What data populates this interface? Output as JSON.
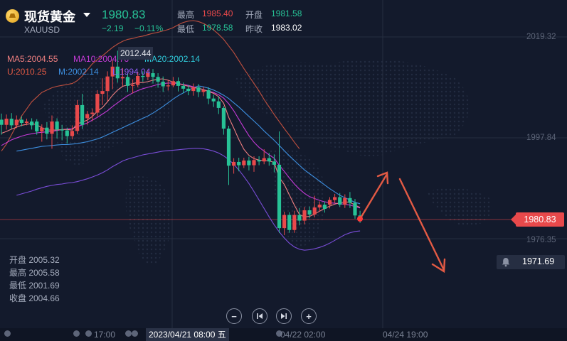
{
  "header": {
    "title": "现货黄金",
    "symbol": "XAUUSD",
    "price": "1980.83",
    "change": "−2.19",
    "change_pct": "−0.11%",
    "high_label": "最高",
    "high": "1985.40",
    "open_label": "开盘",
    "open": "1981.58",
    "low_label": "最低",
    "low": "1978.58",
    "prev_close_label": "昨收",
    "prev_close": "1983.02"
  },
  "indicators": {
    "ma5": "MA5:2004.55",
    "ma10": "MA10:2004.76",
    "ma20": "MA20:2002.14",
    "boll_u": "U:2010.25",
    "boll_m": "M:2002.14",
    "boll_l": "L:1994.04"
  },
  "ohlc_box": {
    "open": "开盘 2005.32",
    "high": "最高 2005.58",
    "low": "最低 2001.69",
    "close": "收盘 2004.66"
  },
  "price_tag": "1980.83",
  "alert_value": "1971.69",
  "high_marker": "2012.44",
  "x_axis": {
    "t1": "17:00",
    "highlight": "2023/04/21 08:00 五",
    "t2": "04/22 02:00",
    "t3": "04/24 19:00"
  },
  "colors": {
    "up": "#e8494b",
    "down": "#27c296",
    "ma5": "#f07f80",
    "ma10": "#c43ad6",
    "ma20": "#3d8fe0",
    "boll_u": "#c0503f",
    "boll_l": "#7a4dd8"
  },
  "icons": [
    "gold-coin-icon",
    "caret-down-icon",
    "bell-icon",
    "zoom-out-icon",
    "prev-icon",
    "next-icon",
    "zoom-in-icon"
  ],
  "chart_data": {
    "type": "candlestick",
    "y_axis_ticks": [
      "2019.32",
      "1997.84",
      "1976.35"
    ],
    "ylim": [
      1963.5,
      2025.2
    ],
    "candles": [
      [
        2001.7,
        2000.6,
        2003.0,
        1998.5
      ],
      [
        2000.6,
        2001.9,
        2002.8,
        1999.6
      ],
      [
        2001.9,
        2000.5,
        2003.1,
        1999.8
      ],
      [
        2000.5,
        2001.7,
        2002.6,
        1999.9
      ],
      [
        2001.7,
        2001.0,
        2002.4,
        2000.3
      ],
      [
        2001.0,
        2001.3,
        2001.9,
        2000.5
      ],
      [
        2001.3,
        2000.5,
        2002.0,
        1999.6
      ],
      [
        2001.3,
        1999.2,
        2001.8,
        1998.5
      ],
      [
        1999.2,
        2000.0,
        2000.7,
        1997.0
      ],
      [
        2000.0,
        1998.7,
        2001.2,
        1997.5
      ],
      [
        1998.7,
        2001.3,
        2002.6,
        1995.5
      ],
      [
        2001.3,
        1999.6,
        2002.0,
        1997.7
      ],
      [
        1999.6,
        1999.4,
        2000.6,
        1997.3
      ],
      [
        1999.4,
        1998.2,
        2000.0,
        1996.6
      ],
      [
        1998.2,
        1999.3,
        2000.5,
        1997.5
      ],
      [
        1999.3,
        2004.8,
        2005.9,
        1998.6
      ],
      [
        2004.8,
        2000.6,
        2007.2,
        1999.7
      ],
      [
        2002.0,
        2002.9,
        2003.6,
        2000.6
      ],
      [
        2002.9,
        2003.2,
        2004.1,
        2001.4
      ],
      [
        2003.2,
        2007.2,
        2008.0,
        2002.4
      ],
      [
        2007.2,
        2007.8,
        2010.5,
        2004.8
      ],
      [
        2007.8,
        2010.9,
        2012.0,
        2005.6
      ],
      [
        2010.9,
        2013.0,
        2014.4,
        2008.2
      ],
      [
        2013.0,
        2010.5,
        2016.4,
        2009.6
      ],
      [
        2010.5,
        2010.8,
        2012.7,
        2008.9
      ],
      [
        2010.8,
        2008.9,
        2011.6,
        2007.6
      ],
      [
        2008.9,
        2009.1,
        2010.3,
        2007.3
      ],
      [
        2009.1,
        2011.0,
        2011.9,
        2008.6
      ],
      [
        2011.0,
        2010.8,
        2012.0,
        2009.8
      ],
      [
        2010.8,
        2011.6,
        2012.4,
        2010.1
      ],
      [
        2011.6,
        2010.8,
        2012.5,
        2009.4
      ],
      [
        2010.8,
        2009.8,
        2011.6,
        2008.5
      ],
      [
        2009.8,
        2008.8,
        2010.9,
        2007.6
      ],
      [
        2008.8,
        2009.0,
        2010.2,
        2007.9
      ],
      [
        2009.0,
        2009.9,
        2010.8,
        2008.6
      ],
      [
        2009.9,
        2008.9,
        2010.7,
        2007.7
      ],
      [
        2008.9,
        2008.3,
        2009.6,
        2007.3
      ],
      [
        2008.3,
        2007.8,
        2009.1,
        2006.9
      ],
      [
        2007.8,
        2008.6,
        2009.4,
        2006.8
      ],
      [
        2008.6,
        2007.6,
        2009.3,
        2006.5
      ],
      [
        2007.6,
        2008.0,
        2008.7,
        2006.7
      ],
      [
        2008.0,
        2006.2,
        2008.6,
        2005.0
      ],
      [
        2006.2,
        2005.6,
        2007.0,
        2004.4
      ],
      [
        2005.6,
        2004.2,
        2006.7,
        2002.9
      ],
      [
        2004.2,
        1999.8,
        2004.6,
        1998.5
      ],
      [
        1999.8,
        1991.9,
        2000.4,
        1987.8
      ],
      [
        1991.9,
        1992.7,
        1993.5,
        1990.2
      ],
      [
        1992.7,
        1992.0,
        1993.6,
        1990.7
      ],
      [
        1992.0,
        1993.0,
        1993.6,
        1991.4
      ],
      [
        1993.0,
        1992.0,
        1993.8,
        1990.9
      ],
      [
        1992.0,
        1993.1,
        1993.9,
        1990.6
      ],
      [
        1993.1,
        1992.8,
        1993.9,
        1992.0
      ],
      [
        1992.8,
        1993.5,
        1995.4,
        1992.2
      ],
      [
        1993.5,
        1992.8,
        1994.6,
        1991.9
      ],
      [
        1992.8,
        1992.1,
        1994.3,
        1990.5
      ],
      [
        1992.1,
        1978.6,
        1999.2,
        1977.6
      ],
      [
        1978.6,
        1981.4,
        1982.1,
        1977.1
      ],
      [
        1981.4,
        1978.2,
        1982.0,
        1977.6
      ],
      [
        1978.2,
        1981.4,
        1982.3,
        1977.6
      ],
      [
        1981.4,
        1980.2,
        1982.9,
        1979.2
      ],
      [
        1980.2,
        1982.4,
        1983.1,
        1979.4
      ],
      [
        1982.4,
        1981.5,
        1983.2,
        1980.7
      ],
      [
        1981.5,
        1983.0,
        1985.5,
        1980.9
      ],
      [
        1983.0,
        1983.6,
        1984.3,
        1982.1
      ],
      [
        1983.6,
        1982.7,
        1984.3,
        1981.9
      ],
      [
        1983.6,
        1984.6,
        1985.2,
        1982.8
      ],
      [
        1984.6,
        1985.2,
        1985.9,
        1983.9
      ],
      [
        1985.2,
        1983.6,
        1986.1,
        1983.1
      ],
      [
        1983.6,
        1985.0,
        1985.8,
        1982.9
      ],
      [
        1985.0,
        1984.0,
        1986.3,
        1982.9
      ],
      [
        1984.0,
        1981.3,
        1984.8,
        1980.6
      ],
      [
        1981.3,
        1980.8,
        1982.3,
        1979.7
      ]
    ],
    "ma5": [
      1998.8,
      1999.2,
      1999.7,
      2000.1,
      2000.5,
      2000.7,
      2000.9,
      2000.6,
      2000.0,
      1999.5,
      1999.5,
      1999.5,
      1999.6,
      1999.6,
      1999.5,
      2000.8,
      2001.2,
      2001.6,
      2002.4,
      2003.5,
      2004.3,
      2005.5,
      2006.9,
      2008.0,
      2008.8,
      2009.1,
      2009.4,
      2009.6,
      2009.6,
      2009.8,
      2010.1,
      2010.3,
      2010.4,
      2010.1,
      2009.7,
      2009.4,
      2009.1,
      2008.8,
      2008.5,
      2008.4,
      2008.1,
      2007.7,
      2007.3,
      2006.6,
      2005.2,
      2002.2,
      1999.9,
      1997.5,
      1995.4,
      1994.1,
      1993.4,
      1993.1,
      1993.0,
      1992.9,
      1992.6,
      1989.4,
      1987.9,
      1985.7,
      1983.5,
      1981.5,
      1981.0,
      1981.1,
      1981.6,
      1982.2,
      1982.8,
      1983.3,
      1983.7,
      1984.0,
      1984.2,
      1984.1,
      1983.5,
      1983.0
    ],
    "ma10": [
      1996.2,
      1996.8,
      1997.4,
      1997.8,
      1998.2,
      1998.5,
      1998.7,
      1998.9,
      1999.0,
      1999.1,
      1999.2,
      1999.4,
      1999.6,
      1999.7,
      1999.8,
      2000.2,
      2000.6,
      2001.0,
      2001.6,
      2002.2,
      2002.9,
      2003.6,
      2004.5,
      2005.3,
      2006.1,
      2006.8,
      2007.4,
      2007.9,
      2008.3,
      2008.6,
      2008.9,
      2009.2,
      2009.4,
      2009.5,
      2009.5,
      2009.4,
      2009.2,
      2009.0,
      2008.7,
      2008.4,
      2008.1,
      2007.8,
      2007.5,
      2007.0,
      2006.3,
      2005.1,
      2003.6,
      2001.8,
      2000.0,
      1998.3,
      1996.9,
      1995.8,
      1995.0,
      1994.2,
      1993.5,
      1992.0,
      1990.7,
      1989.3,
      1988.0,
      1986.9,
      1986.0,
      1985.3,
      1984.9,
      1984.5,
      1984.2,
      1984.0,
      1983.9,
      1983.8,
      1983.7,
      1983.5,
      1983.2,
      1982.9
    ],
    "ma20": [
      null,
      null,
      null,
      1995.0,
      1995.2,
      1995.4,
      1995.6,
      1995.8,
      1996.0,
      1996.1,
      1996.2,
      1996.3,
      1996.4,
      1996.4,
      1996.5,
      1996.6,
      1996.8,
      1997.0,
      1997.3,
      1997.6,
      1998.0,
      1998.5,
      1999.0,
      1999.5,
      2000.0,
      2000.5,
      2001.0,
      2001.5,
      2002.0,
      2002.5,
      2003.1,
      2003.8,
      2004.5,
      2005.3,
      2006.1,
      2006.8,
      2007.4,
      2008.0,
      2008.5,
      2008.9,
      2008.7,
      2008.4,
      2008.0,
      2007.5,
      2006.9,
      2006.2,
      2005.3,
      2004.4,
      2003.4,
      2002.4,
      2001.4,
      2000.4,
      1999.3,
      1998.3,
      1997.3,
      1996.2,
      1995.1,
      1994.0,
      1993.0,
      1992.0,
      1991.0,
      1990.2,
      1989.4,
      1988.6,
      1987.8,
      1987.0,
      1986.3,
      1985.6,
      1985.1,
      1984.6,
      1984.1,
      1983.8
    ],
    "boll_u": [
      1995.0,
      1996.5,
      1998.5,
      2000.5,
      2002.5,
      2004.0,
      2005.5,
      2006.5,
      2007.5,
      2008.0,
      2008.5,
      2008.8,
      2009.0,
      2009.2,
      2009.4,
      2010.0,
      2011.0,
      2012.3,
      2013.6,
      2014.5,
      2015.3,
      2016.2,
      2017.1,
      2017.8,
      2018.4,
      2018.8,
      2019.0,
      2019.3,
      2019.5,
      2019.8,
      2020.1,
      2020.3,
      2020.6,
      2020.9,
      2021.3,
      2021.9,
      2022.4,
      2022.7,
      2022.8,
      2022.6,
      2022.2,
      2021.6,
      2020.8,
      2019.9,
      2018.8,
      2017.4,
      2016.0,
      2014.3,
      2012.6,
      2011.0,
      2009.4,
      2007.8,
      2006.0,
      2004.4,
      2002.8,
      2001.3,
      1999.8,
      1998.4,
      1996.9,
      1995.5,
      null,
      null,
      null,
      null,
      null,
      null,
      null,
      null,
      null,
      null,
      null,
      null
    ],
    "boll_l": [
      null,
      null,
      null,
      1985.6,
      1985.9,
      1986.2,
      1986.5,
      1986.9,
      1987.2,
      1987.5,
      1987.7,
      1987.9,
      1988.0,
      1988.2,
      1988.3,
      1988.5,
      1988.8,
      1989.1,
      1989.5,
      1989.9,
      1990.4,
      1991.0,
      1991.7,
      1992.3,
      1992.9,
      1993.3,
      1993.6,
      1993.9,
      1994.2,
      1994.4,
      1994.6,
      1994.8,
      1995.0,
      1995.1,
      1995.2,
      1995.3,
      1995.4,
      1995.5,
      1995.6,
      1995.6,
      1995.5,
      1995.3,
      1995.0,
      1994.6,
      1994.0,
      1993.2,
      1992.2,
      1991.0,
      1989.6,
      1988.1,
      1986.4,
      1984.6,
      1982.8,
      1981.0,
      1979.3,
      1977.8,
      1976.5,
      1975.4,
      1974.6,
      1974.1,
      1973.9,
      1974.0,
      1974.2,
      1974.5,
      1974.9,
      1975.4,
      1976.0,
      1976.6,
      1977.2,
      1977.6,
      1977.9,
      1978.0
    ]
  }
}
